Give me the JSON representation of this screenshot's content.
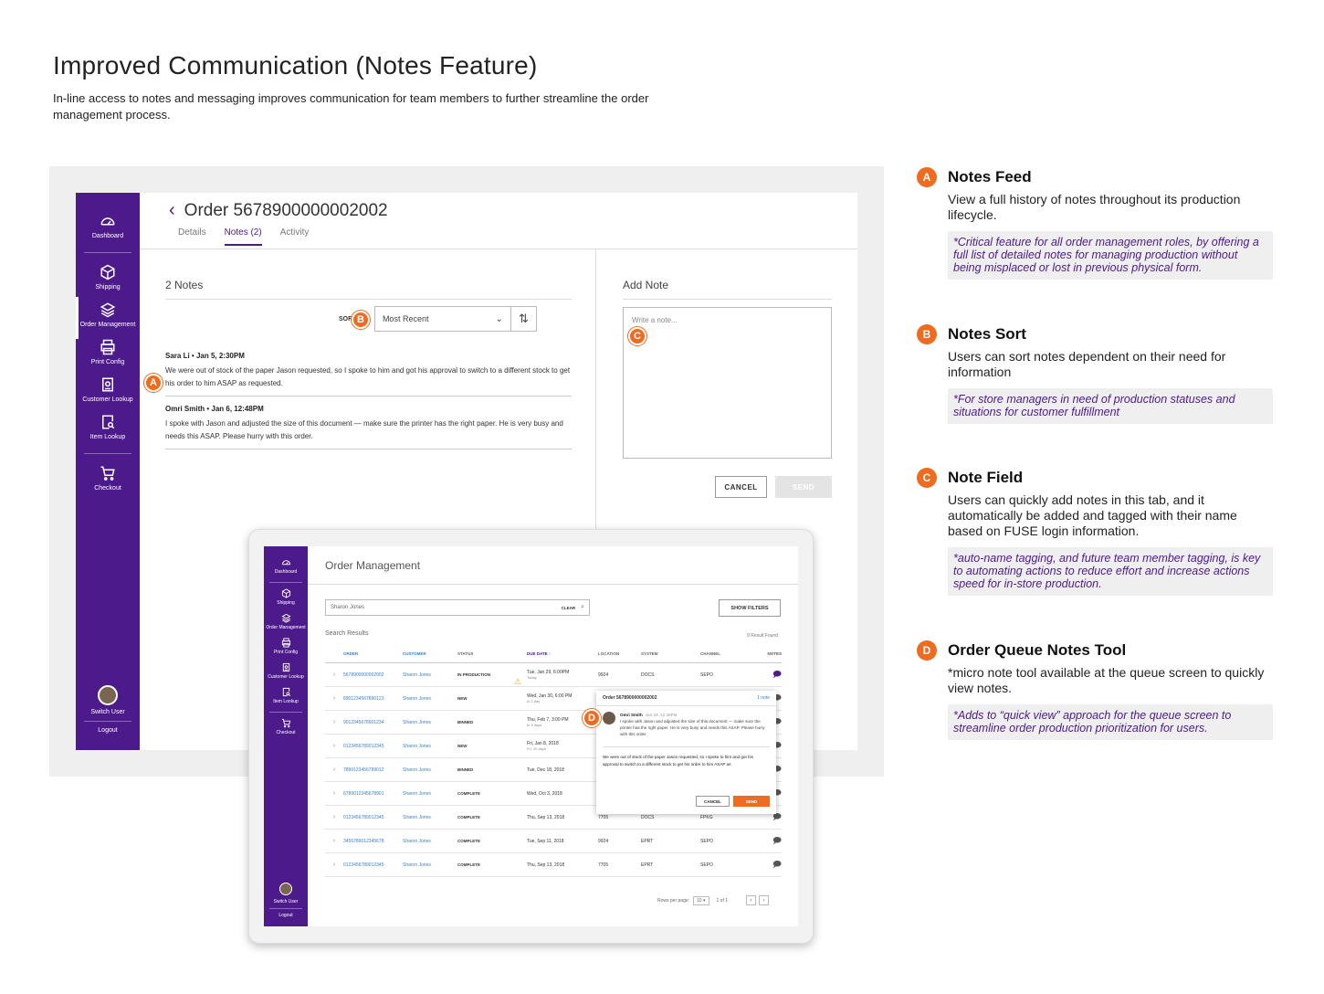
{
  "header": {
    "title": "Improved Communication (Notes Feature)",
    "subtitle": "In-line access to notes and messaging improves communication for team members to further streamline the order management process."
  },
  "colors": {
    "brand": "#4d1a8c",
    "accent": "#ee6b1f",
    "link": "#3a7fc4"
  },
  "sidebar": {
    "items": [
      {
        "label": "Dashboard",
        "icon": "dashboard-icon"
      },
      {
        "label": "Shipping",
        "icon": "box-icon"
      },
      {
        "label": "Order Management",
        "icon": "layers-icon"
      },
      {
        "label": "Print Config",
        "icon": "printer-icon"
      },
      {
        "label": "Customer Lookup",
        "icon": "id-badge-icon"
      },
      {
        "label": "Item Lookup",
        "icon": "search-doc-icon"
      },
      {
        "label": "Checkout",
        "icon": "cart-icon"
      },
      {
        "label": "Switch User",
        "icon": "avatar"
      },
      {
        "label": "Logout"
      }
    ]
  },
  "order": {
    "title": "Order 5678900000002002",
    "tabs": [
      "Details",
      "Notes (2)",
      "Activity"
    ],
    "notes_count": "2 Notes",
    "sort_label": "SORT BY:",
    "sort_value": "Most Recent",
    "notes": [
      {
        "author": "Sara Li",
        "time": "Jan 5, 2:30PM",
        "text": "We were out of stock of the paper Jason requested, so I spoke to him and got his approval to switch to a different stock to get his order to him ASAP as requested."
      },
      {
        "author": "Omri Smith",
        "time": "Jan 6, 12:48PM",
        "text": "I spoke with Jason and adjusted the size of this document — make sure the printer has the right paper. He is very busy and needs this ASAP. Please hurry with this order."
      }
    ],
    "add_note_title": "Add Note",
    "placeholder": "Write a note...",
    "cancel": "CANCEL",
    "send": "SEND"
  },
  "markers": {
    "a": "A",
    "b": "B",
    "c": "C",
    "d": "D"
  },
  "queue": {
    "title": "Order Management",
    "search_value": "Sharon Jones",
    "clear": "CLEAR",
    "show_filters": "SHOW FILTERS",
    "results_label": "Search Results",
    "results_found": "9 Result Found",
    "columns": [
      "ORDER",
      "CUSTOMER",
      "STATUS",
      "DUE DATE ↑",
      "LOCATION",
      "SYSTEM",
      "CHANNEL",
      "NOTES"
    ],
    "rows": [
      {
        "order": "5678900000002002",
        "customer": "Sharon Jones",
        "status": "IN PRODUCTION",
        "due": "Tue, Jan 29, 6:00PM",
        "due_sub": "Today",
        "location": "9924",
        "system": "DOCS",
        "channel": "SEPO"
      },
      {
        "order": "8901234567890123",
        "customer": "Sharon Jones",
        "status": "NEW",
        "due": "Wed, Jan 30, 6:00 PM",
        "due_sub": "In 1 day",
        "location": "",
        "system": "",
        "channel": ""
      },
      {
        "order": "9012345678901234",
        "customer": "Sharon Jones",
        "status": "BINNED",
        "due": "Thu, Feb 7, 3:00 PM",
        "due_sub": "In 9 days",
        "location": "",
        "system": "",
        "channel": ""
      },
      {
        "order": "0123456789012345",
        "customer": "Sharon Jones",
        "status": "NEW",
        "due": "Fri, Jan 8, 2018",
        "due_sub": "Fri, 10 days",
        "location": "",
        "system": "",
        "channel": ""
      },
      {
        "order": "7890123456789012",
        "customer": "Sharon Jones",
        "status": "BINNED",
        "due": "Tue, Dec 18, 2018",
        "due_sub": "",
        "location": "",
        "system": "",
        "channel": ""
      },
      {
        "order": "6789012345678901",
        "customer": "Sharon Jones",
        "status": "COMPLETE",
        "due": "Wed, Oct 3, 2018",
        "due_sub": "",
        "location": "",
        "system": "",
        "channel": ""
      },
      {
        "order": "0123456789012345",
        "customer": "Sharon Jones",
        "status": "COMPLETE",
        "due": "Thu, Sep 13, 2018",
        "due_sub": "",
        "location": "7705",
        "system": "DOCS",
        "channel": "FPKG"
      },
      {
        "order": "3456789012345678",
        "customer": "Sharon Jones",
        "status": "COMPLETE",
        "due": "Tue, Sep 11, 2018",
        "due_sub": "",
        "location": "9924",
        "system": "EPRT",
        "channel": "SEPO"
      },
      {
        "order": "0123456789012345",
        "customer": "Sharon Jones",
        "status": "COMPLETE",
        "due": "Thu, Sep 13, 2018",
        "due_sub": "",
        "location": "7705",
        "system": "EPRT",
        "channel": "SEPO"
      }
    ],
    "rows_per_page_label": "Rows per page:",
    "rows_per_page": "10",
    "page_info": "1 of 1",
    "popover": {
      "title": "Order 5678900000002002",
      "count": "1 note",
      "author": "Omri Smith",
      "date": "Jan 29, 12:48PM",
      "text": "I spoke with Jason and adjusted the size of this document — make sure the printer has the right paper. He is very busy and needs this ASAP. Please hurry with this order.",
      "draft": "We were out of stock of the paper Jason requested, so I spoke to him and got his approval to switch to a different stock to get his order to him ASAP as",
      "cancel": "CANCEL",
      "send": "SEND"
    }
  },
  "annotations": [
    {
      "badge": "A",
      "title": "Notes Feed",
      "desc": "View a full history of notes throughout its production lifecycle.",
      "note": "*Critical feature for all order management roles, by offering a full list of detailed notes for managing production without being misplaced or lost in previous physical form."
    },
    {
      "badge": "B",
      "title": "Notes Sort",
      "desc": "Users can sort notes dependent on their need for information",
      "note": "*For store managers in need of production statuses and situations for customer fulfillment"
    },
    {
      "badge": "C",
      "title": "Note Field",
      "desc": "Users can quickly add notes in this tab, and it automatically be added and tagged with their name based on FUSE login information.",
      "note": "*auto-name tagging, and future team member tagging, is key to automating actions to reduce effort and increase actions speed for in-store production."
    },
    {
      "badge": "D",
      "title": "Order Queue Notes Tool",
      "desc": "*micro note tool available at the queue screen to quickly view notes.",
      "note": "*Adds to “quick view” approach for the queue screen to streamline order production prioritization for users."
    }
  ]
}
